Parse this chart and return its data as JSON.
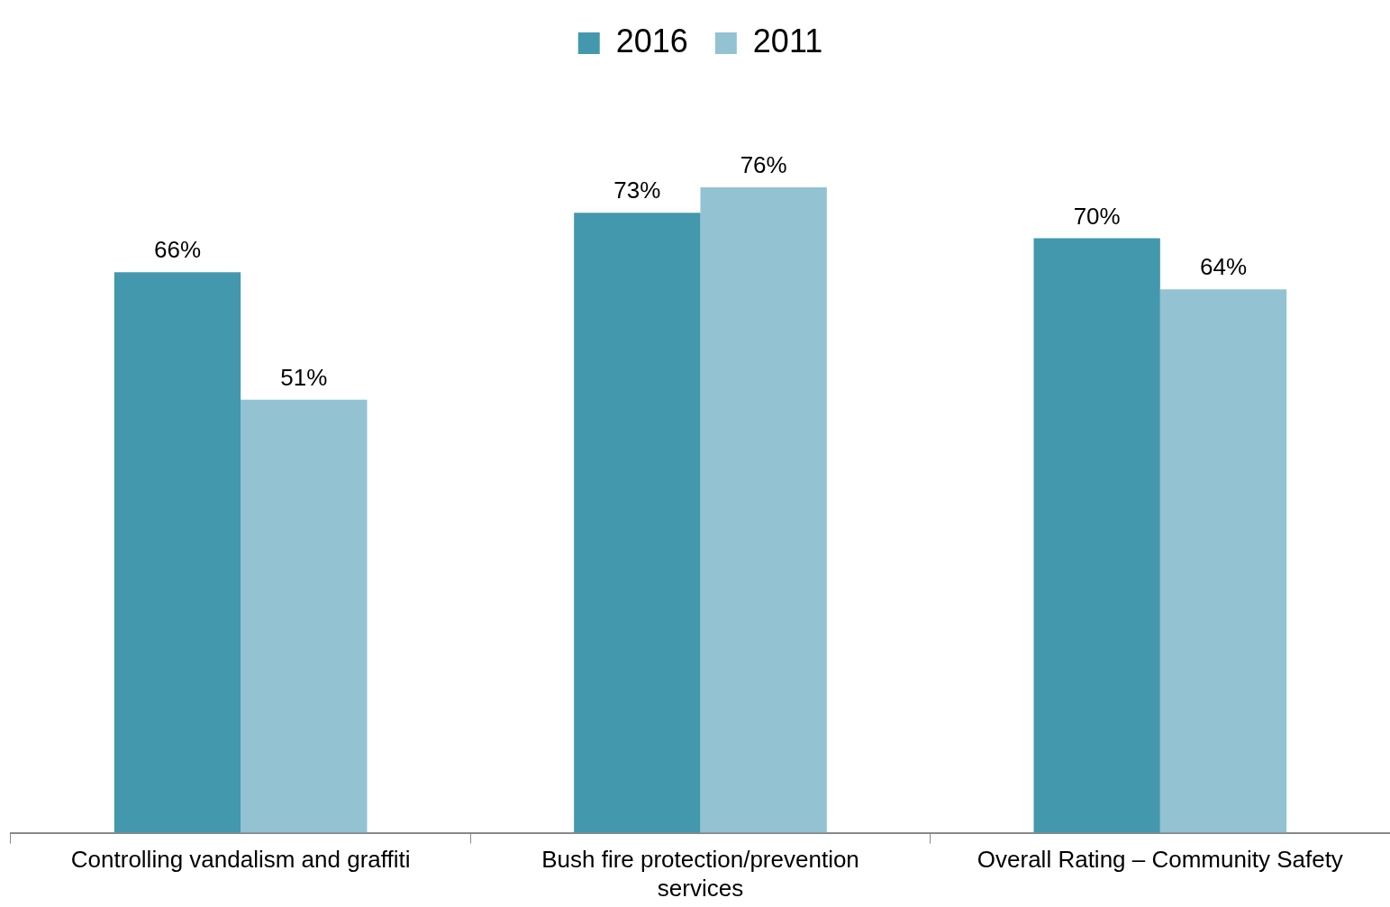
{
  "chart_data": {
    "type": "bar",
    "categories": [
      "Controlling vandalism and graffiti",
      "Bush fire protection/prevention services",
      "Overall Rating – Community Safety"
    ],
    "series": [
      {
        "name": "2016",
        "color": "#4398ae",
        "values": [
          66,
          73,
          70
        ],
        "value_labels": [
          "66%",
          "73%",
          "70%"
        ]
      },
      {
        "name": "2011",
        "color": "#93c2d3",
        "values": [
          51,
          76,
          64
        ],
        "value_labels": [
          "51%",
          "76%",
          "64%"
        ]
      }
    ],
    "legend": "top",
    "tick_labels": "x"
  }
}
